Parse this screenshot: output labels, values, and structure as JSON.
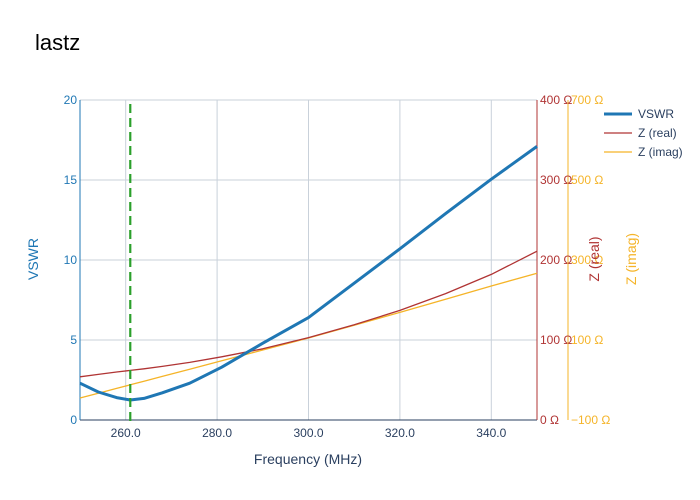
{
  "chart_data": {
    "type": "line",
    "title": "lastz",
    "xlabel": "Frequency (MHz)",
    "xlim": [
      250,
      350
    ],
    "x_ticks": [
      "260.0",
      "280.0",
      "300.0",
      "320.0",
      "340.0"
    ],
    "x_tick_values": [
      260,
      280,
      300,
      320,
      340
    ],
    "marker_x": 261,
    "marker_color": "#2ca02c",
    "grid": true,
    "legend_position": "top-right",
    "axes": {
      "y1": {
        "label": "VSWR",
        "range": [
          0,
          20
        ],
        "tick_values": [
          0,
          5,
          10,
          15,
          20
        ],
        "ticks": [
          "0",
          "5",
          "10",
          "15",
          "20"
        ],
        "color": "#1f77b4"
      },
      "y2": {
        "label": "Z (real)",
        "range": [
          0,
          400
        ],
        "tick_values": [
          0,
          100,
          200,
          300,
          400
        ],
        "ticks": [
          "0 Ω",
          "100 Ω",
          "200 Ω",
          "300 Ω",
          "400 Ω"
        ],
        "color": "#b03434"
      },
      "y3": {
        "label": "Z (imag)",
        "range": [
          -100,
          700
        ],
        "tick_values": [
          -100,
          100,
          300,
          500,
          700
        ],
        "ticks": [
          "−100 Ω",
          "100 Ω",
          "300 Ω",
          "500 Ω",
          "700 Ω"
        ],
        "color": "#f5b428"
      }
    },
    "x": [
      250,
      254,
      258,
      261,
      264,
      268,
      274,
      281,
      290,
      300,
      310,
      320,
      330,
      340,
      350
    ],
    "series": [
      {
        "name": "VSWR",
        "axis": "y1",
        "color": "#1f77b4",
        "values": [
          2.3,
          1.75,
          1.4,
          1.25,
          1.35,
          1.7,
          2.3,
          3.3,
          4.8,
          6.4,
          8.55,
          10.7,
          12.9,
          15.05,
          17.1
        ]
      },
      {
        "name": "Z (real)",
        "axis": "y2",
        "color": "#b03434",
        "values": [
          54,
          57,
          60,
          62,
          64,
          67,
          72,
          79,
          89,
          103,
          119,
          137,
          158,
          182,
          211
        ]
      },
      {
        "name": "Z (imag)",
        "axis": "y3",
        "color": "#f5b428",
        "values": [
          -45,
          -33,
          -21,
          -12,
          -3,
          9,
          27,
          48,
          75,
          105,
          137,
          169,
          202,
          235,
          267
        ]
      }
    ]
  }
}
